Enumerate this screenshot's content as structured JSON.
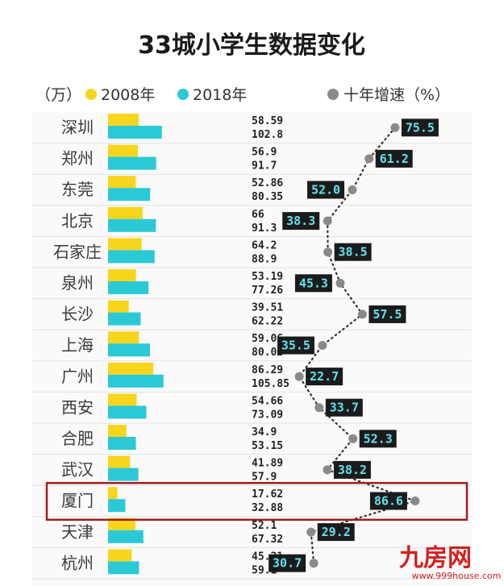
{
  "chart_data": {
    "type": "bar",
    "title": "33城小学生数据变化",
    "unit_label": "（万）",
    "growth_label": "十年增速（%）",
    "series": [
      {
        "name": "2008年",
        "color": "#f7d51d",
        "values": [
          58.59,
          56.9,
          52.86,
          66,
          64.2,
          53.19,
          39.51,
          59.06,
          86.29,
          54.66,
          34.9,
          41.89,
          17.62,
          52.1,
          45.21
        ]
      },
      {
        "name": "2018年",
        "color": "#2bc9d6",
        "values": [
          102.8,
          91.7,
          80.35,
          91.3,
          88.9,
          77.26,
          62.22,
          80.02,
          105.85,
          73.09,
          53.15,
          57.9,
          32.88,
          67.32,
          59.1
        ]
      }
    ],
    "categories": [
      "深圳",
      "郑州",
      "东莞",
      "北京",
      "石家庄",
      "泉州",
      "长沙",
      "上海",
      "广州",
      "西安",
      "合肥",
      "武汉",
      "厦门",
      "天津",
      "杭州"
    ],
    "growth": {
      "name": "十年增速",
      "values": [
        75.5,
        61.2,
        52.0,
        38.3,
        38.5,
        45.3,
        57.5,
        35.5,
        22.7,
        33.7,
        52.3,
        38.2,
        86.6,
        29.2,
        30.7
      ],
      "labels": [
        "75.5",
        "61.2",
        "52.0",
        "38.3",
        "38.5",
        "45.3",
        "57.5",
        "35.5",
        "22.7",
        "33.7",
        "52.3",
        "38.2",
        "86.6",
        "29.2",
        "30.7"
      ],
      "label_side": [
        "right",
        "right",
        "left",
        "left",
        "right",
        "left",
        "right",
        "left",
        "right",
        "right",
        "right",
        "right",
        "left",
        "right",
        "left"
      ]
    },
    "value_labels_2008": [
      "58.59",
      "56.9",
      "52.86",
      "66",
      "64.2",
      "53.19",
      "39.51",
      "59.06",
      "86.29",
      "54.66",
      "34.9",
      "41.89",
      "17.62",
      "52.1",
      "45.21"
    ],
    "value_labels_2018": [
      "102.8",
      "91.7",
      "80.35",
      "91.3",
      "88.9",
      "77.26",
      "62.22",
      "80.02",
      "105.85",
      "73.09",
      "53.15",
      "57.9",
      "32.88",
      "67.32",
      "59.1"
    ],
    "highlight": "厦门",
    "highlight_color": "#a01d1d",
    "growth_box_color": "#1b1b1b",
    "growth_dot_color": "#8a8a8a",
    "grid": true,
    "legend_position": "top"
  },
  "watermark": {
    "brand": "九房网",
    "url": "www.999house.com"
  }
}
